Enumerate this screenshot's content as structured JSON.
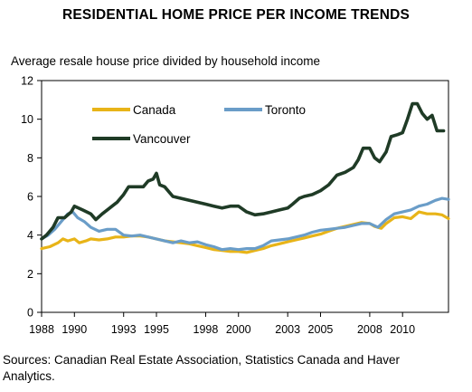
{
  "title": "RESIDENTIAL HOME PRICE PER INCOME TRENDS",
  "subtitle": "Average resale house price divided by household income",
  "source": "Sources: Canadian Real Estate Association, Statistics Canada and Haver Analytics.",
  "chart_data": {
    "type": "line",
    "ylim": [
      0,
      12
    ],
    "xlim": [
      1988,
      2012.8
    ],
    "yticks": [
      "0",
      "2",
      "4",
      "6",
      "8",
      "10",
      "12"
    ],
    "xticks": [
      "1988",
      "1990",
      "1993",
      "1995",
      "1998",
      "2000",
      "2003",
      "2005",
      "2008",
      "2010"
    ],
    "grid": false,
    "legend": "top-left inside",
    "series": [
      {
        "name": "Canada",
        "color": "#E8B418",
        "points": [
          [
            1988.0,
            3.3
          ],
          [
            1988.5,
            3.4
          ],
          [
            1989.0,
            3.6
          ],
          [
            1989.3,
            3.8
          ],
          [
            1989.6,
            3.7
          ],
          [
            1990.0,
            3.8
          ],
          [
            1990.3,
            3.6
          ],
          [
            1990.7,
            3.7
          ],
          [
            1991.0,
            3.8
          ],
          [
            1991.5,
            3.75
          ],
          [
            1992.0,
            3.8
          ],
          [
            1992.5,
            3.9
          ],
          [
            1993.0,
            3.9
          ],
          [
            1993.5,
            3.95
          ],
          [
            1994.0,
            3.95
          ],
          [
            1994.5,
            3.9
          ],
          [
            1995.0,
            3.8
          ],
          [
            1995.5,
            3.7
          ],
          [
            1996.0,
            3.65
          ],
          [
            1996.5,
            3.6
          ],
          [
            1997.0,
            3.55
          ],
          [
            1997.5,
            3.45
          ],
          [
            1998.0,
            3.35
          ],
          [
            1998.5,
            3.25
          ],
          [
            1999.0,
            3.2
          ],
          [
            1999.5,
            3.15
          ],
          [
            2000.0,
            3.15
          ],
          [
            2000.5,
            3.1
          ],
          [
            2001.0,
            3.2
          ],
          [
            2001.5,
            3.3
          ],
          [
            2002.0,
            3.45
          ],
          [
            2002.5,
            3.55
          ],
          [
            2003.0,
            3.65
          ],
          [
            2003.5,
            3.75
          ],
          [
            2004.0,
            3.85
          ],
          [
            2004.5,
            3.95
          ],
          [
            2005.0,
            4.05
          ],
          [
            2005.5,
            4.2
          ],
          [
            2006.0,
            4.35
          ],
          [
            2006.5,
            4.45
          ],
          [
            2007.0,
            4.55
          ],
          [
            2007.5,
            4.65
          ],
          [
            2008.0,
            4.6
          ],
          [
            2008.3,
            4.45
          ],
          [
            2008.7,
            4.35
          ],
          [
            2009.0,
            4.6
          ],
          [
            2009.5,
            4.9
          ],
          [
            2010.0,
            4.95
          ],
          [
            2010.5,
            4.85
          ],
          [
            2011.0,
            5.2
          ],
          [
            2011.5,
            5.1
          ],
          [
            2012.0,
            5.1
          ],
          [
            2012.4,
            5.05
          ],
          [
            2012.8,
            4.85
          ]
        ]
      },
      {
        "name": "Toronto",
        "color": "#6A9DC8",
        "points": [
          [
            1988.0,
            3.8
          ],
          [
            1988.4,
            4.0
          ],
          [
            1988.8,
            4.3
          ],
          [
            1989.2,
            4.7
          ],
          [
            1989.6,
            5.1
          ],
          [
            1989.9,
            5.2
          ],
          [
            1990.2,
            4.9
          ],
          [
            1990.6,
            4.7
          ],
          [
            1991.0,
            4.4
          ],
          [
            1991.5,
            4.2
          ],
          [
            1992.0,
            4.3
          ],
          [
            1992.5,
            4.3
          ],
          [
            1993.0,
            4.0
          ],
          [
            1993.5,
            3.95
          ],
          [
            1994.0,
            4.0
          ],
          [
            1994.5,
            3.9
          ],
          [
            1995.0,
            3.8
          ],
          [
            1995.5,
            3.7
          ],
          [
            1996.0,
            3.6
          ],
          [
            1996.5,
            3.7
          ],
          [
            1997.0,
            3.6
          ],
          [
            1997.5,
            3.65
          ],
          [
            1998.0,
            3.5
          ],
          [
            1998.5,
            3.4
          ],
          [
            1999.0,
            3.25
          ],
          [
            1999.5,
            3.3
          ],
          [
            2000.0,
            3.25
          ],
          [
            2000.5,
            3.3
          ],
          [
            2001.0,
            3.3
          ],
          [
            2001.5,
            3.45
          ],
          [
            2002.0,
            3.7
          ],
          [
            2002.5,
            3.75
          ],
          [
            2003.0,
            3.8
          ],
          [
            2003.5,
            3.9
          ],
          [
            2004.0,
            4.0
          ],
          [
            2004.5,
            4.15
          ],
          [
            2005.0,
            4.25
          ],
          [
            2005.5,
            4.3
          ],
          [
            2006.0,
            4.35
          ],
          [
            2006.5,
            4.4
          ],
          [
            2007.0,
            4.5
          ],
          [
            2007.5,
            4.6
          ],
          [
            2008.0,
            4.6
          ],
          [
            2008.5,
            4.4
          ],
          [
            2009.0,
            4.8
          ],
          [
            2009.5,
            5.1
          ],
          [
            2010.0,
            5.2
          ],
          [
            2010.5,
            5.3
          ],
          [
            2011.0,
            5.5
          ],
          [
            2011.5,
            5.6
          ],
          [
            2012.0,
            5.8
          ],
          [
            2012.4,
            5.9
          ],
          [
            2012.8,
            5.85
          ]
        ]
      },
      {
        "name": "Vancouver",
        "color": "#1F3B26",
        "points": [
          [
            1988.0,
            3.8
          ],
          [
            1988.3,
            4.0
          ],
          [
            1988.7,
            4.4
          ],
          [
            1989.0,
            4.9
          ],
          [
            1989.4,
            4.9
          ],
          [
            1989.8,
            5.2
          ],
          [
            1990.0,
            5.5
          ],
          [
            1990.5,
            5.3
          ],
          [
            1991.0,
            5.1
          ],
          [
            1991.3,
            4.8
          ],
          [
            1991.7,
            5.1
          ],
          [
            1992.0,
            5.3
          ],
          [
            1992.3,
            5.5
          ],
          [
            1992.6,
            5.7
          ],
          [
            1993.0,
            6.1
          ],
          [
            1993.3,
            6.5
          ],
          [
            1993.8,
            6.5
          ],
          [
            1994.2,
            6.5
          ],
          [
            1994.5,
            6.8
          ],
          [
            1994.8,
            6.9
          ],
          [
            1995.0,
            7.2
          ],
          [
            1995.2,
            6.6
          ],
          [
            1995.5,
            6.5
          ],
          [
            1995.8,
            6.2
          ],
          [
            1996.0,
            6.0
          ],
          [
            1996.5,
            5.9
          ],
          [
            1997.0,
            5.8
          ],
          [
            1997.5,
            5.7
          ],
          [
            1998.0,
            5.6
          ],
          [
            1998.5,
            5.5
          ],
          [
            1999.0,
            5.4
          ],
          [
            1999.5,
            5.5
          ],
          [
            2000.0,
            5.5
          ],
          [
            2000.5,
            5.2
          ],
          [
            2001.0,
            5.05
          ],
          [
            2001.5,
            5.1
          ],
          [
            2002.0,
            5.2
          ],
          [
            2002.5,
            5.3
          ],
          [
            2003.0,
            5.4
          ],
          [
            2003.3,
            5.6
          ],
          [
            2003.7,
            5.9
          ],
          [
            2004.0,
            6.0
          ],
          [
            2004.5,
            6.1
          ],
          [
            2005.0,
            6.3
          ],
          [
            2005.5,
            6.6
          ],
          [
            2006.0,
            7.1
          ],
          [
            2006.5,
            7.25
          ],
          [
            2007.0,
            7.5
          ],
          [
            2007.3,
            7.9
          ],
          [
            2007.6,
            8.5
          ],
          [
            2008.0,
            8.5
          ],
          [
            2008.3,
            8.0
          ],
          [
            2008.6,
            7.8
          ],
          [
            2009.0,
            8.3
          ],
          [
            2009.3,
            9.1
          ],
          [
            2009.7,
            9.2
          ],
          [
            2010.0,
            9.3
          ],
          [
            2010.3,
            10.0
          ],
          [
            2010.6,
            10.8
          ],
          [
            2010.9,
            10.8
          ],
          [
            2011.2,
            10.3
          ],
          [
            2011.5,
            10.0
          ],
          [
            2011.8,
            10.2
          ],
          [
            2012.1,
            9.4
          ],
          [
            2012.5,
            9.4
          ]
        ]
      }
    ]
  }
}
